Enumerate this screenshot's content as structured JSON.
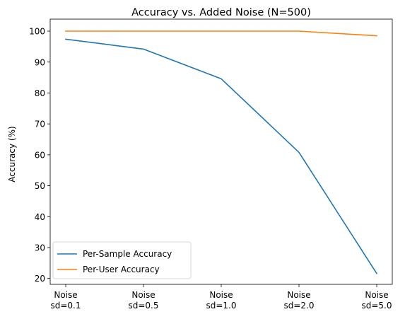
{
  "chart_data": {
    "type": "line",
    "title": "Accuracy vs. Added Noise (N=500)",
    "xlabel": "",
    "ylabel": "Accuracy (%)",
    "categories": [
      [
        "Noise",
        "sd=0.1"
      ],
      [
        "Noise",
        "sd=0.5"
      ],
      [
        "Noise",
        "sd=1.0"
      ],
      [
        "Noise",
        "sd=2.0"
      ],
      [
        "Noise",
        "sd=5.0"
      ]
    ],
    "yticks": [
      20,
      30,
      40,
      50,
      60,
      70,
      80,
      90,
      100
    ],
    "ylim": [
      18.1,
      103.9
    ],
    "grid": false,
    "legend": "lower-left",
    "series": [
      {
        "name": "Per-Sample Accuracy",
        "color": "#1f77b4",
        "values": [
          97.4,
          94.2,
          84.6,
          60.8,
          21.6
        ]
      },
      {
        "name": "Per-User Accuracy",
        "color": "#ff7f0e",
        "values": [
          100.0,
          100.0,
          100.0,
          100.0,
          98.5
        ]
      }
    ]
  }
}
